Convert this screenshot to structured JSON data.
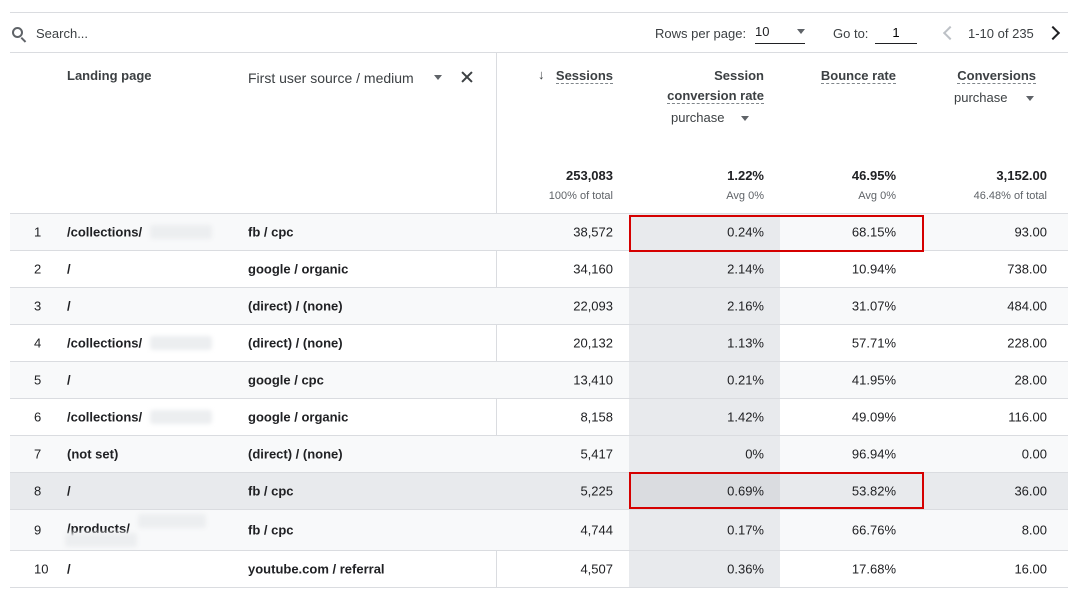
{
  "toolbar": {
    "search_placeholder": "Search...",
    "rows_per_page_label": "Rows per page:",
    "rows_per_page_value": "10",
    "go_to_label": "Go to:",
    "go_to_value": "1",
    "page_range": "1-10 of 235"
  },
  "columns": {
    "landing_page": "Landing page",
    "first_user_source": "First user source / medium",
    "sessions": "Sessions",
    "session_conversion_rate_1": "Session",
    "session_conversion_rate_2": "conversion rate",
    "session_conversion_filter": "purchase",
    "bounce_rate": "Bounce rate",
    "conversions": "Conversions",
    "conversions_filter": "purchase"
  },
  "totals": {
    "sessions": "253,083",
    "sessions_sub": "100% of total",
    "conversion_rate": "1.22%",
    "conversion_rate_sub": "Avg 0%",
    "bounce_rate": "46.95%",
    "bounce_rate_sub": "Avg 0%",
    "conversions": "3,152.00",
    "conversions_sub": "46.48% of total"
  },
  "rows": [
    {
      "num": "1",
      "page": "/collections/",
      "source": "fb / cpc",
      "sessions": "38,572",
      "cr": "0.24%",
      "br": "68.15%",
      "conv": "93.00"
    },
    {
      "num": "2",
      "page": "/",
      "source": "google / organic",
      "sessions": "34,160",
      "cr": "2.14%",
      "br": "10.94%",
      "conv": "738.00"
    },
    {
      "num": "3",
      "page": "/",
      "source": "(direct) / (none)",
      "sessions": "22,093",
      "cr": "2.16%",
      "br": "31.07%",
      "conv": "484.00"
    },
    {
      "num": "4",
      "page": "/collections/",
      "source": "(direct) / (none)",
      "sessions": "20,132",
      "cr": "1.13%",
      "br": "57.71%",
      "conv": "228.00"
    },
    {
      "num": "5",
      "page": "/",
      "source": "google / cpc",
      "sessions": "13,410",
      "cr": "0.21%",
      "br": "41.95%",
      "conv": "28.00"
    },
    {
      "num": "6",
      "page": "/collections/",
      "source": "google / organic",
      "sessions": "8,158",
      "cr": "1.42%",
      "br": "49.09%",
      "conv": "116.00"
    },
    {
      "num": "7",
      "page": "(not set)",
      "source": "(direct) / (none)",
      "sessions": "5,417",
      "cr": "0%",
      "br": "96.94%",
      "conv": "0.00"
    },
    {
      "num": "8",
      "page": "/",
      "source": "fb / cpc",
      "sessions": "5,225",
      "cr": "0.69%",
      "br": "53.82%",
      "conv": "36.00"
    },
    {
      "num": "9",
      "page": "/products/",
      "source": "fb / cpc",
      "sessions": "4,744",
      "cr": "0.17%",
      "br": "66.76%",
      "conv": "8.00"
    },
    {
      "num": "10",
      "page": "/",
      "source": "youtube.com / referral",
      "sessions": "4,507",
      "cr": "0.36%",
      "br": "17.68%",
      "conv": "16.00"
    }
  ],
  "colors": {
    "highlight": "#d50000",
    "band": "#e8eaed"
  }
}
